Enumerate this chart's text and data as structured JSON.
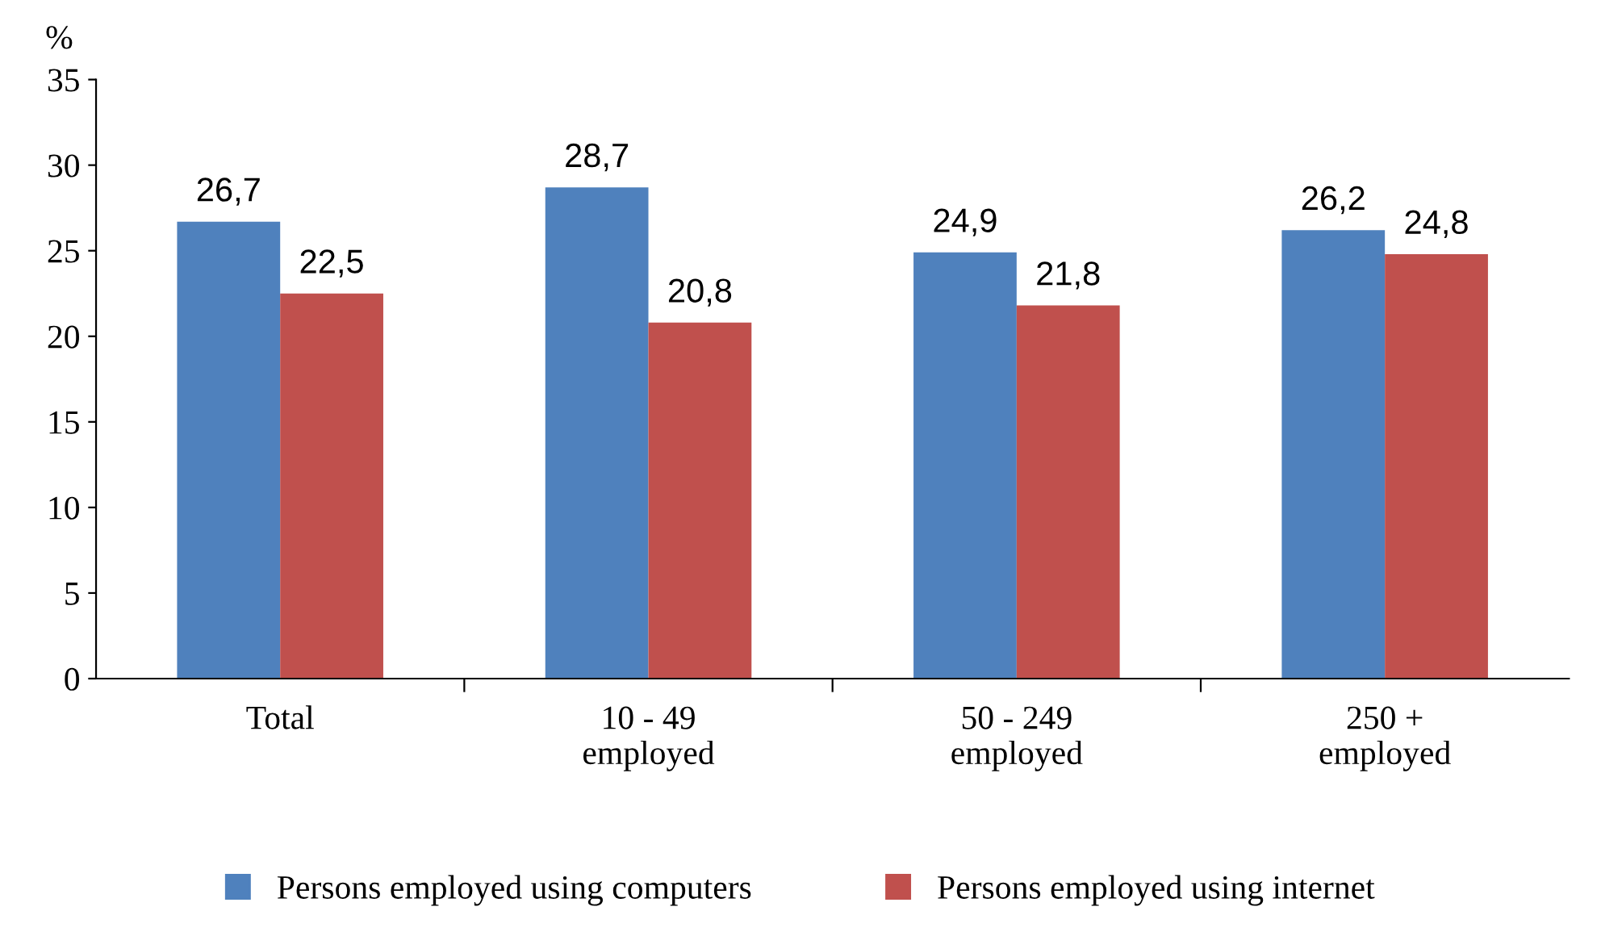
{
  "chart_data": {
    "type": "bar",
    "ylabel": "%",
    "categories": [
      "Total",
      "10 - 49\nemployed",
      "50 - 249\nemployed",
      "250 +\nemployed"
    ],
    "series": [
      {
        "name": "Persons employed using computers",
        "color": "#4f81bd",
        "values": [
          26.7,
          28.7,
          24.9,
          26.2
        ],
        "value_labels": [
          "26,7",
          "28,7",
          "24,9",
          "26,2"
        ]
      },
      {
        "name": "Persons employed using internet",
        "color": "#c0504d",
        "values": [
          22.5,
          20.8,
          21.8,
          24.8
        ],
        "value_labels": [
          "22,5",
          "20,8",
          "21,8",
          "24,8"
        ]
      }
    ],
    "ylim": [
      0,
      35
    ],
    "yticks": [
      0,
      5,
      10,
      15,
      20,
      25,
      30,
      35
    ],
    "grid": false,
    "legend": "bottom"
  }
}
